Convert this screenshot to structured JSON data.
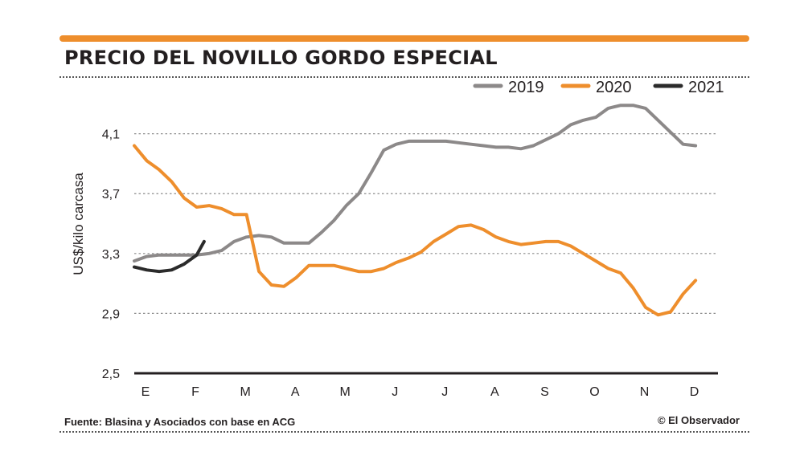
{
  "title": "PRECIO DEL NOVILLO GORDO ESPECIAL",
  "source": "Fuente: Blasina y Asociados con base en ACG",
  "credit": "© El Observador",
  "colors": {
    "accent": "#ee8e2c",
    "c2019": "#8c8989",
    "c2020": "#ee8e2c",
    "c2021": "#2b2b2b",
    "text": "#231f20",
    "grid": "#8c8c8c"
  },
  "chart_data": {
    "type": "line",
    "ylabel": "US$/kilo carcasa",
    "xlabel": "",
    "ylim": [
      2.5,
      4.35
    ],
    "yticks": [
      2.5,
      2.9,
      3.3,
      3.7,
      4.1
    ],
    "ytick_labels": [
      "2,5",
      "2,9",
      "3,3",
      "3,7",
      "4,1"
    ],
    "xlim": [
      0,
      11.7
    ],
    "months": [
      "E",
      "F",
      "M",
      "A",
      "M",
      "J",
      "J",
      "A",
      "S",
      "O",
      "N",
      "D"
    ],
    "grid": true,
    "legend_position": "top-right",
    "series": [
      {
        "name": "2019",
        "color": "#8c8989",
        "x": [
          0,
          0.25,
          0.5,
          0.75,
          1,
          1.25,
          1.5,
          1.75,
          2,
          2.25,
          2.5,
          2.75,
          3,
          3.25,
          3.5,
          3.75,
          4,
          4.25,
          4.5,
          4.75,
          5,
          5.25,
          5.5,
          5.75,
          6,
          6.25,
          6.5,
          6.75,
          7,
          7.25,
          7.5,
          7.75,
          8,
          8.25,
          8.5,
          8.75,
          9,
          9.25,
          9.5,
          9.75,
          10,
          10.25,
          10.5,
          10.75,
          11,
          11.25
        ],
        "y": [
          3.25,
          3.28,
          3.29,
          3.29,
          3.29,
          3.29,
          3.3,
          3.32,
          3.38,
          3.41,
          3.42,
          3.41,
          3.37,
          3.37,
          3.37,
          3.44,
          3.52,
          3.62,
          3.7,
          3.84,
          3.99,
          4.03,
          4.05,
          4.05,
          4.05,
          4.05,
          4.04,
          4.03,
          4.02,
          4.01,
          4.01,
          4.0,
          4.02,
          4.06,
          4.1,
          4.16,
          4.19,
          4.21,
          4.27,
          4.29,
          4.29,
          4.27,
          4.19,
          4.11,
          4.03,
          4.02
        ]
      },
      {
        "name": "2020",
        "color": "#ee8e2c",
        "x": [
          0,
          0.25,
          0.5,
          0.75,
          1,
          1.25,
          1.5,
          1.75,
          2,
          2.25,
          2.5,
          2.75,
          3,
          3.25,
          3.5,
          3.75,
          4,
          4.25,
          4.5,
          4.75,
          5,
          5.25,
          5.5,
          5.75,
          6,
          6.25,
          6.5,
          6.75,
          7,
          7.25,
          7.5,
          7.75,
          8,
          8.25,
          8.5,
          8.75,
          9,
          9.25,
          9.5,
          9.75,
          10,
          10.25,
          10.5,
          10.75,
          11,
          11.25
        ],
        "y": [
          4.02,
          3.92,
          3.86,
          3.78,
          3.67,
          3.61,
          3.62,
          3.6,
          3.56,
          3.56,
          3.18,
          3.09,
          3.08,
          3.14,
          3.22,
          3.22,
          3.22,
          3.2,
          3.18,
          3.18,
          3.2,
          3.24,
          3.27,
          3.31,
          3.38,
          3.43,
          3.48,
          3.49,
          3.46,
          3.41,
          3.38,
          3.36,
          3.37,
          3.38,
          3.38,
          3.35,
          3.3,
          3.25,
          3.2,
          3.17,
          3.07,
          2.94,
          2.89,
          2.91,
          3.03,
          3.12
        ]
      },
      {
        "name": "2021",
        "color": "#2b2b2b",
        "x": [
          0,
          0.25,
          0.5,
          0.75,
          1,
          1.25,
          1.4
        ],
        "y": [
          3.21,
          3.19,
          3.18,
          3.19,
          3.23,
          3.29,
          3.38
        ]
      }
    ]
  }
}
